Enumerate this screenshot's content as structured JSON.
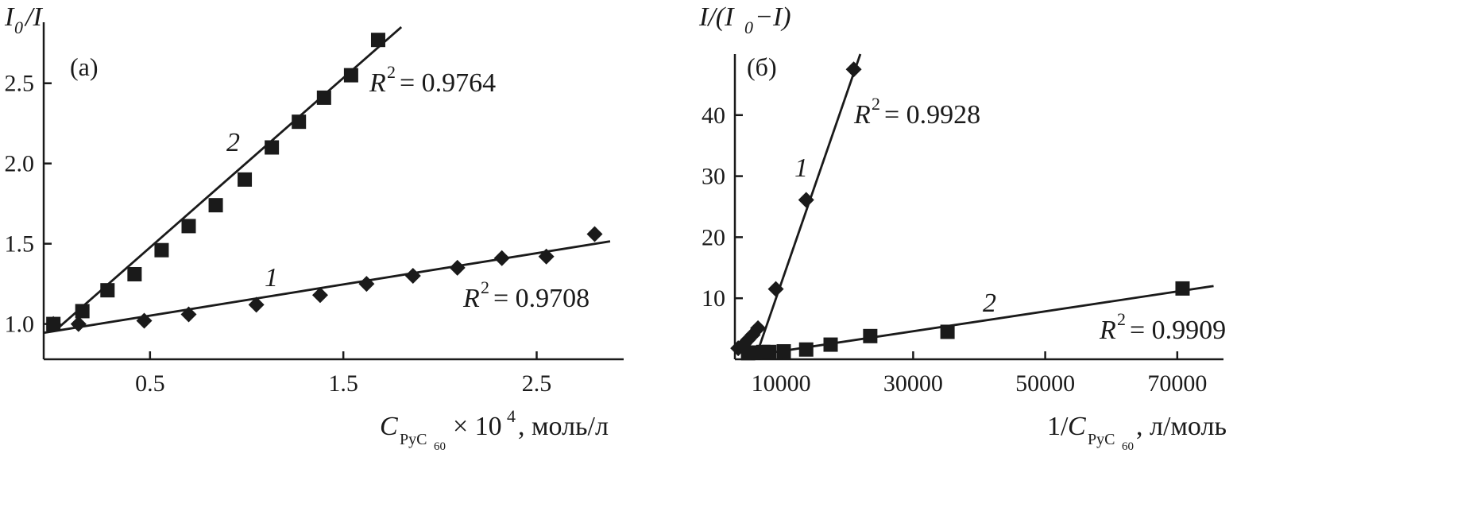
{
  "figure": {
    "panels": [
      "(a)",
      "(б)"
    ]
  },
  "chart_data": [
    {
      "type": "scatter",
      "panel_label": "(a)",
      "ylabel": "I0/I",
      "xlabel": "CPyC60 × 10^4, моль/л",
      "xlim": [
        -0.05,
        2.95
      ],
      "ylim": [
        0.78,
        2.88
      ],
      "xticks": [
        "0.5",
        "1.5",
        "2.5"
      ],
      "yticks": [
        "1.0",
        "1.5",
        "2.0",
        "2.5"
      ],
      "series": [
        {
          "name": "1",
          "marker": "diamond",
          "x": [
            0.0,
            0.13,
            0.47,
            0.7,
            1.05,
            1.38,
            1.62,
            1.86,
            2.09,
            2.32,
            2.55,
            2.8
          ],
          "y": [
            1.0,
            1.0,
            1.02,
            1.06,
            1.12,
            1.18,
            1.25,
            1.3,
            1.35,
            1.41,
            1.42,
            1.56
          ],
          "fit": {
            "x": [
              -0.05,
              2.88
            ],
            "y": [
              0.945,
              1.515
            ]
          },
          "r2_label": "= 0.9708"
        },
        {
          "name": "2",
          "marker": "square",
          "x": [
            0.0,
            0.15,
            0.28,
            0.42,
            0.56,
            0.7,
            0.84,
            0.99,
            1.13,
            1.27,
            1.4,
            1.54,
            1.68
          ],
          "y": [
            1.0,
            1.08,
            1.21,
            1.31,
            1.46,
            1.61,
            1.74,
            1.9,
            2.1,
            2.26,
            2.41,
            2.55,
            2.77
          ],
          "fit": {
            "x": [
              0.02,
              1.8
            ],
            "y": [
              0.97,
              2.85
            ]
          },
          "r2_label": "= 0.9764"
        }
      ]
    },
    {
      "type": "scatter",
      "panel_label": "(б)",
      "ylabel": "I/(I0−I)",
      "xlabel": "1/CPyC60, л/моль",
      "xlim": [
        3000,
        77000
      ],
      "ylim": [
        0,
        50
      ],
      "xticks": [
        "10000",
        "30000",
        "50000",
        "70000"
      ],
      "yticks": [
        "10",
        "20",
        "30",
        "40"
      ],
      "series": [
        {
          "name": "1",
          "marker": "diamond",
          "x": [
            3500,
            4400,
            5000,
            5700,
            6500,
            9200,
            13800,
            21000
          ],
          "y": [
            1.8,
            2.5,
            3.2,
            4.0,
            5.1,
            11.5,
            26.1,
            47.5
          ],
          "fit": {
            "x": [
              6200,
              22000
            ],
            "y": [
              0.5,
              50
            ]
          },
          "r2_label": "= 0.9928"
        },
        {
          "name": "2",
          "marker": "square",
          "x": [
            5000,
            5800,
            6500,
            7300,
            8200,
            10400,
            13800,
            17500,
            23500,
            35200,
            70800
          ],
          "y": [
            1.0,
            1.1,
            1.1,
            1.2,
            1.2,
            1.3,
            1.6,
            2.4,
            3.8,
            4.5,
            11.6
          ],
          "fit": {
            "x": [
              5500,
              75500
            ],
            "y": [
              0.6,
              12.0
            ]
          },
          "r2_label": "= 0.9909"
        }
      ]
    }
  ]
}
